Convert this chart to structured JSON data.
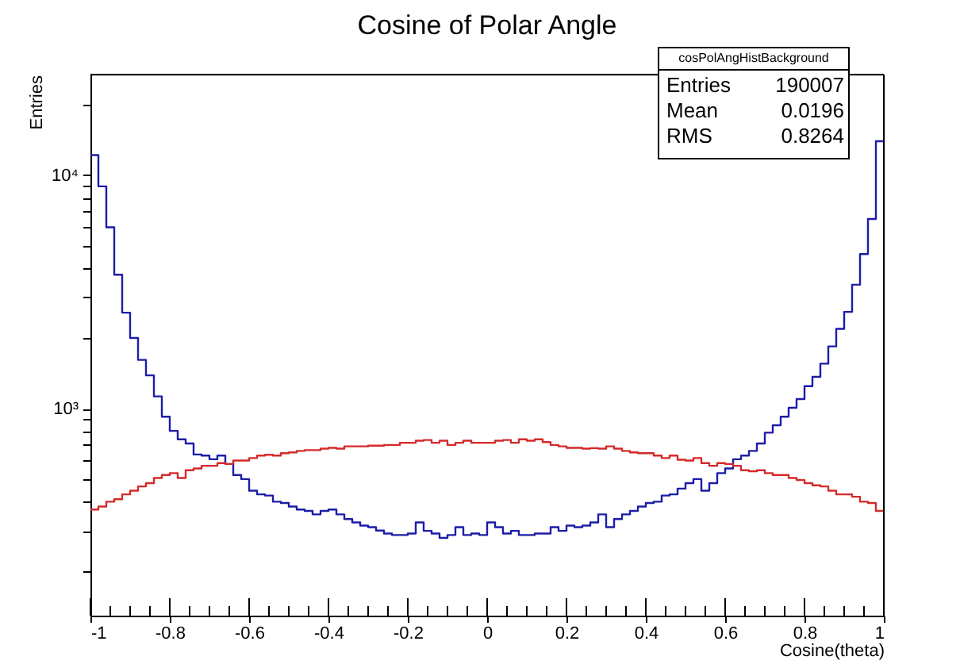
{
  "chart_data": {
    "type": "histogram",
    "title": "Cosine of Polar Angle",
    "xlabel": "Cosine(theta)",
    "ylabel": "Entries",
    "bins": [
      -1.0,
      -0.98,
      -0.96,
      -0.94,
      -0.92,
      -0.9,
      -0.88,
      -0.86,
      -0.84,
      -0.82,
      -0.8,
      -0.78,
      -0.76,
      -0.74,
      -0.72,
      -0.7,
      -0.68,
      -0.66,
      -0.64,
      -0.62,
      -0.6,
      -0.58,
      -0.56,
      -0.54,
      -0.52,
      -0.5,
      -0.48,
      -0.46,
      -0.44,
      -0.42,
      -0.4,
      -0.38,
      -0.36,
      -0.34,
      -0.32,
      -0.3,
      -0.28,
      -0.26,
      -0.24,
      -0.22,
      -0.2,
      -0.18,
      -0.16,
      -0.14,
      -0.12,
      -0.1,
      -0.08,
      -0.06,
      -0.04,
      -0.02,
      0.0,
      0.02,
      0.04,
      0.06,
      0.08,
      0.1,
      0.12,
      0.14,
      0.16,
      0.18,
      0.2,
      0.22,
      0.24,
      0.26,
      0.28,
      0.3,
      0.32,
      0.34,
      0.36,
      0.38,
      0.4,
      0.42,
      0.44,
      0.46,
      0.48,
      0.5,
      0.52,
      0.54,
      0.56,
      0.58,
      0.6,
      0.62,
      0.64,
      0.66,
      0.68,
      0.7,
      0.72,
      0.74,
      0.76,
      0.78,
      0.8,
      0.82,
      0.84,
      0.86,
      0.88,
      0.9,
      0.92,
      0.94,
      0.96,
      0.98,
      1.0
    ],
    "series": [
      {
        "color": "#1c1ca8",
        "values": [
          12200,
          8970,
          5990,
          3750,
          2580,
          2010,
          1620,
          1390,
          1130,
          925,
          804,
          740,
          710,
          637,
          630,
          608,
          630,
          580,
          520,
          500,
          446,
          430,
          425,
          400,
          395,
          381,
          370,
          365,
          353,
          365,
          370,
          353,
          337,
          326,
          316,
          311,
          301,
          292,
          288,
          288,
          292,
          326,
          300,
          292,
          280,
          288,
          311,
          288,
          292,
          288,
          326,
          311,
          292,
          300,
          288,
          288,
          292,
          292,
          311,
          300,
          316,
          311,
          316,
          326,
          353,
          311,
          337,
          353,
          365,
          381,
          395,
          400,
          425,
          430,
          455,
          480,
          500,
          446,
          480,
          530,
          555,
          608,
          630,
          660,
          710,
          790,
          850,
          925,
          1010,
          1100,
          1250,
          1370,
          1560,
          1850,
          2200,
          2600,
          3400,
          4600,
          6500,
          14000
        ]
      },
      {
        "color": "#d42a2a",
        "values": [
          370,
          381,
          400,
          410,
          430,
          446,
          465,
          480,
          505,
          520,
          530,
          505,
          545,
          555,
          570,
          570,
          585,
          580,
          600,
          600,
          615,
          630,
          635,
          630,
          645,
          650,
          660,
          665,
          665,
          675,
          680,
          675,
          690,
          690,
          690,
          695,
          695,
          700,
          700,
          715,
          715,
          730,
          735,
          715,
          730,
          700,
          715,
          730,
          715,
          715,
          715,
          730,
          735,
          715,
          740,
          730,
          740,
          720,
          700,
          690,
          680,
          680,
          675,
          678,
          675,
          690,
          675,
          660,
          650,
          645,
          645,
          630,
          615,
          630,
          605,
          600,
          615,
          585,
          570,
          585,
          580,
          570,
          545,
          540,
          545,
          530,
          520,
          520,
          505,
          495,
          480,
          470,
          465,
          446,
          430,
          430,
          420,
          400,
          395,
          365
        ]
      }
    ],
    "log": "y",
    "xlim": [
      -1,
      1
    ],
    "xticks": [
      -1,
      {
        "value": -0.95,
        "label": null
      },
      {
        "value": -0.9,
        "label": null
      },
      {
        "value": -0.85,
        "label": null
      },
      -0.8,
      {
        "value": -0.75,
        "label": null
      },
      {
        "value": -0.7,
        "label": null
      },
      {
        "value": -0.65,
        "label": null
      },
      -0.6,
      {
        "value": -0.55,
        "label": null
      },
      {
        "value": -0.5,
        "label": null
      },
      {
        "value": -0.45,
        "label": null
      },
      -0.4,
      {
        "value": -0.35,
        "label": null
      },
      {
        "value": -0.3,
        "label": null
      },
      {
        "value": -0.25,
        "label": null
      },
      -0.2,
      {
        "value": -0.15,
        "label": null
      },
      {
        "value": -0.1,
        "label": null
      },
      {
        "value": -0.05,
        "label": null
      },
      0,
      {
        "value": 0.05,
        "label": null
      },
      {
        "value": 0.1,
        "label": null
      },
      {
        "value": 0.15,
        "label": null
      },
      0.2,
      {
        "value": 0.25,
        "label": null
      },
      {
        "value": 0.3,
        "label": null
      },
      {
        "value": 0.35,
        "label": null
      },
      0.4,
      {
        "value": 0.45,
        "label": null
      },
      {
        "value": 0.5,
        "label": null
      },
      {
        "value": 0.55,
        "label": null
      },
      0.6,
      {
        "value": 0.65,
        "label": null
      },
      {
        "value": 0.7,
        "label": null
      },
      {
        "value": 0.75,
        "label": null
      },
      0.8,
      {
        "value": 0.85,
        "label": null
      },
      {
        "value": 0.9,
        "label": null
      },
      {
        "value": 0.95,
        "label": null
      },
      1
    ],
    "ylim": [
      130,
      27000
    ],
    "yticks": [
      {
        "value": 200,
        "label": null
      },
      {
        "value": 300,
        "label": null
      },
      {
        "value": 400,
        "label": null
      },
      {
        "value": 500,
        "label": null
      },
      {
        "value": 600,
        "label": null
      },
      {
        "value": 700,
        "label": null
      },
      {
        "value": 800,
        "label": null
      },
      {
        "value": 900,
        "label": null
      },
      {
        "value": 1000,
        "label": "10³"
      },
      {
        "value": 2000,
        "label": null
      },
      {
        "value": 3000,
        "label": null
      },
      {
        "value": 4000,
        "label": null
      },
      {
        "value": 5000,
        "label": null
      },
      {
        "value": 6000,
        "label": null
      },
      {
        "value": 7000,
        "label": null
      },
      {
        "value": 8000,
        "label": null
      },
      {
        "value": 9000,
        "label": null
      },
      {
        "value": 10000,
        "label": "10⁴"
      },
      {
        "value": 20000,
        "label": null
      }
    ],
    "grid": false,
    "annotations": [
      "cosPolAngHistBackground",
      "Entries",
      "190007",
      "Mean",
      "0.0196",
      "RMS",
      "0.8264"
    ]
  }
}
